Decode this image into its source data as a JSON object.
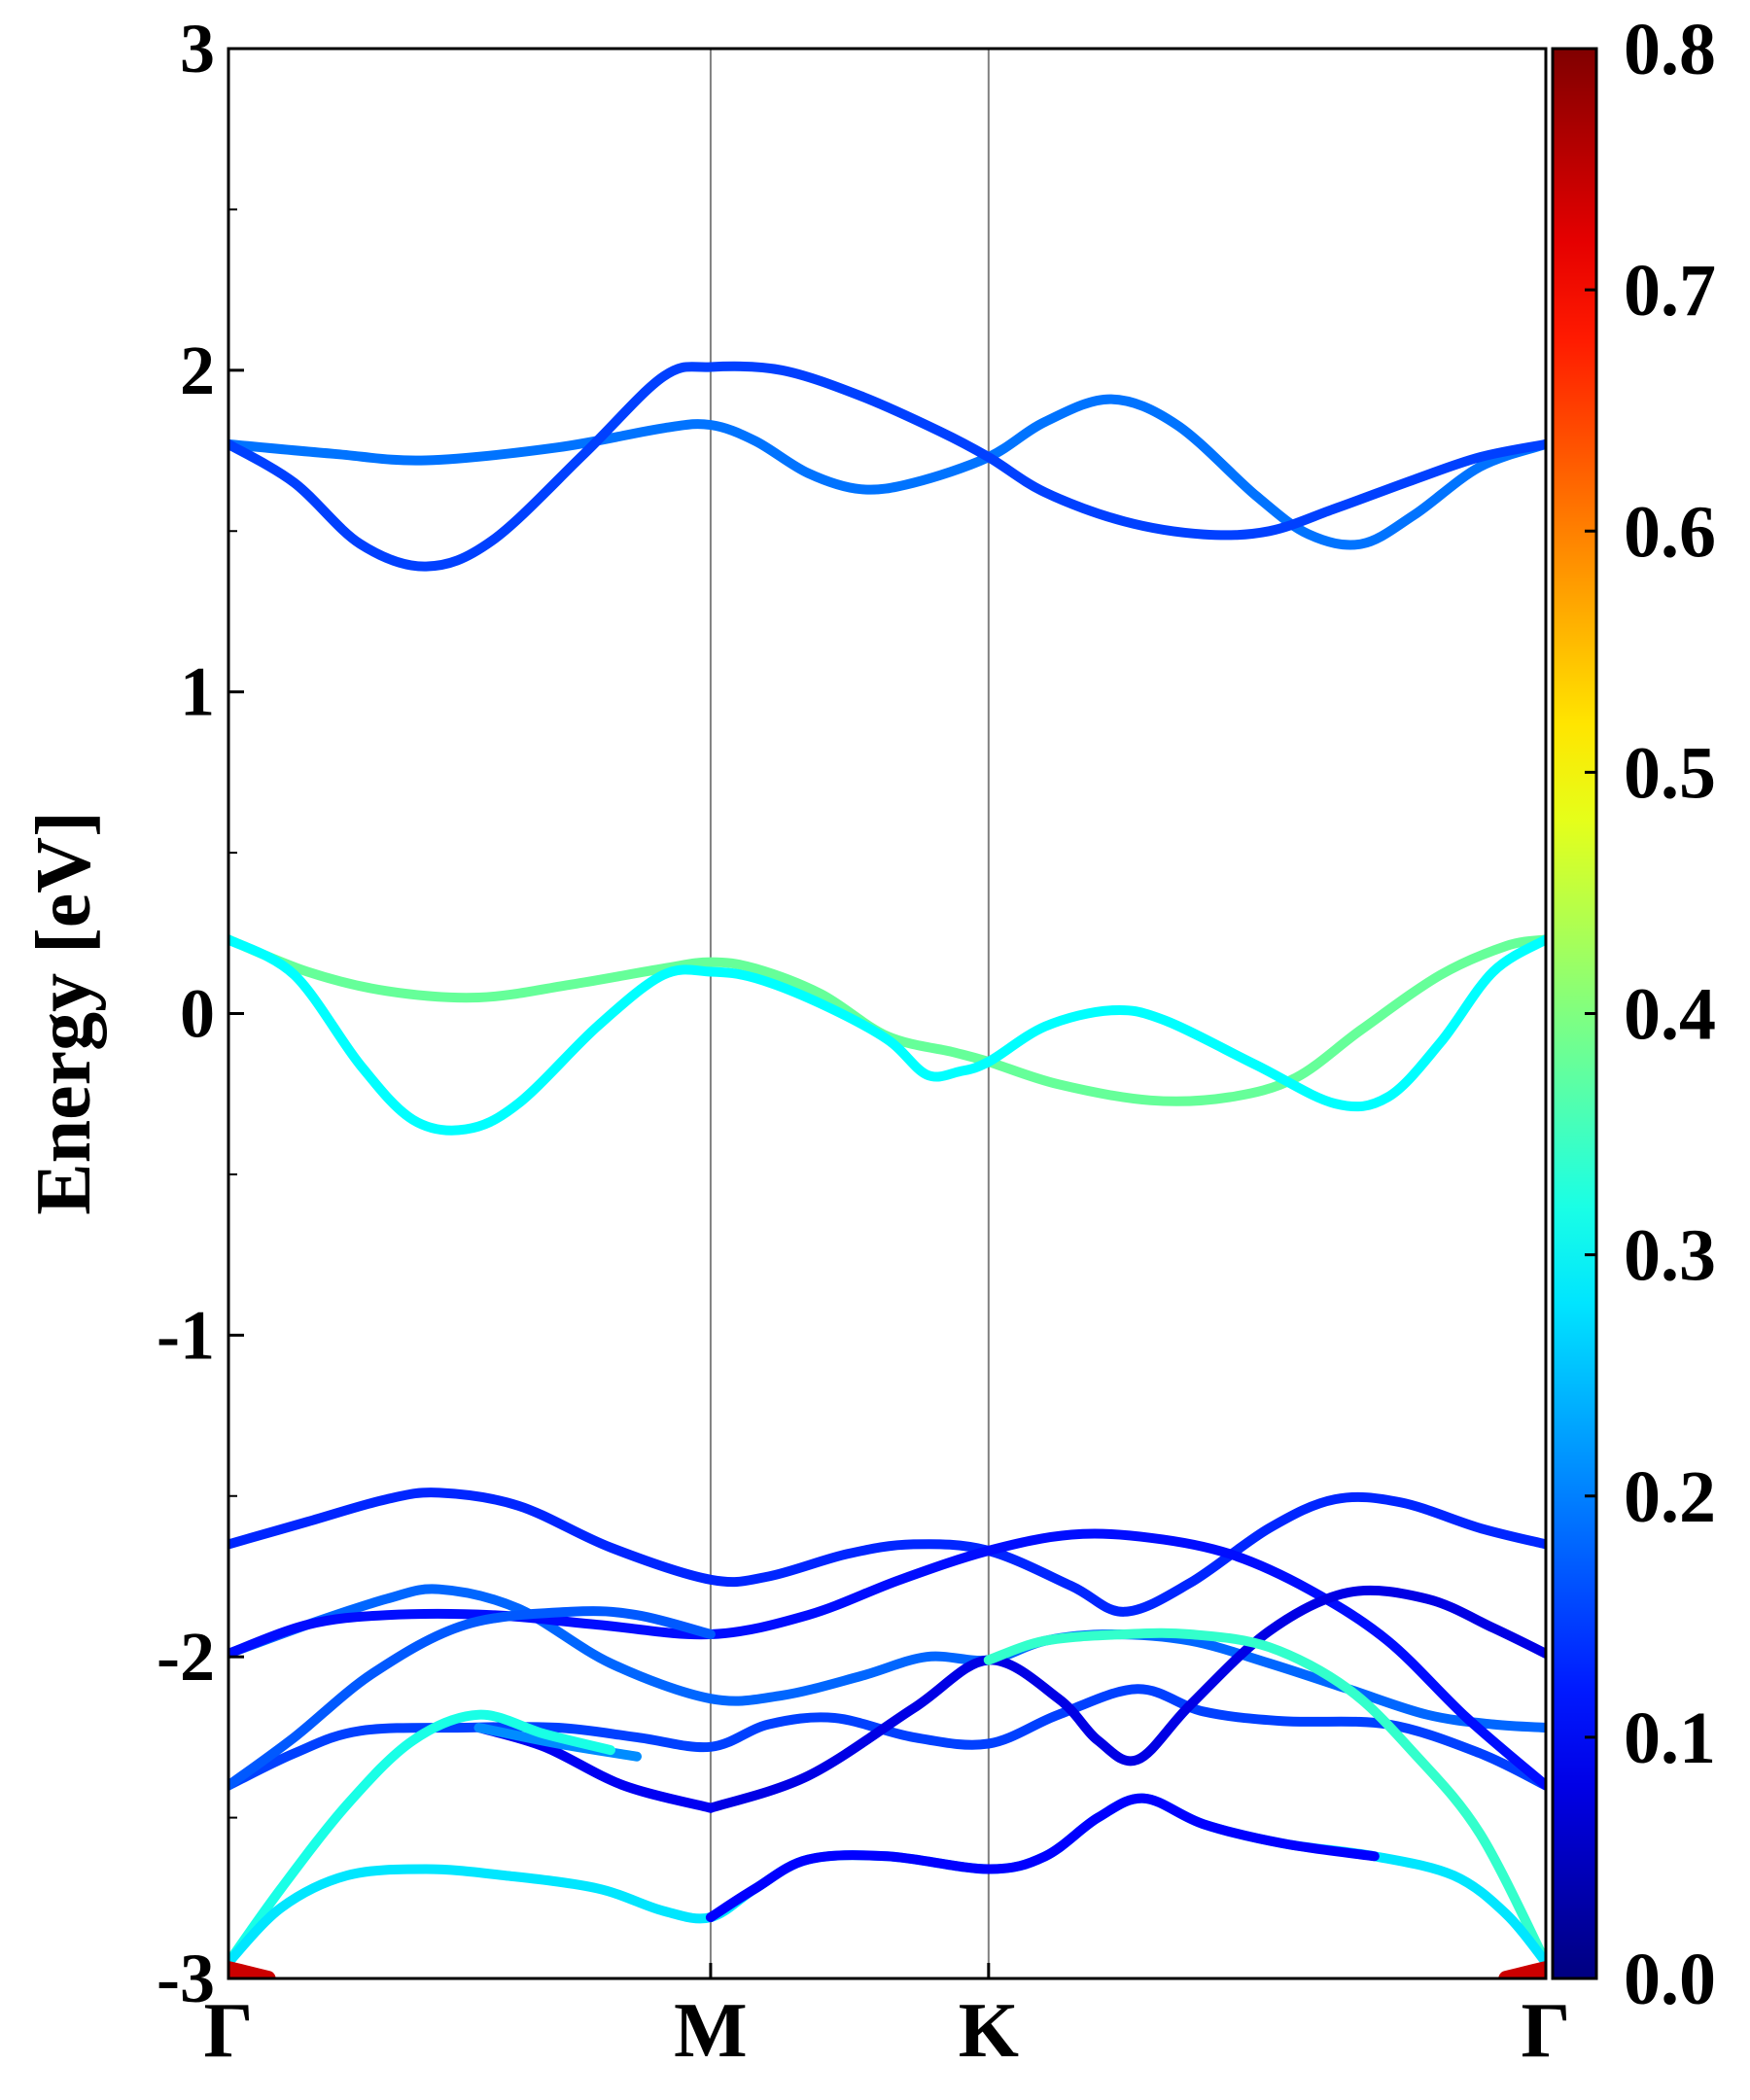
{
  "chart_data": {
    "type": "line",
    "title": "",
    "xlabel": "",
    "ylabel": "Energy [eV]",
    "ylim": [
      -3,
      3
    ],
    "xlim": [
      0,
      1
    ],
    "y_ticks": [
      {
        "value": 3,
        "label": "3"
      },
      {
        "value": 2,
        "label": "2"
      },
      {
        "value": 1,
        "label": "1"
      },
      {
        "value": 0,
        "label": "0"
      },
      {
        "value": -1,
        "label": "-1"
      },
      {
        "value": -2,
        "label": "-2"
      },
      {
        "value": -3,
        "label": "-3"
      }
    ],
    "y_minor_ticks": [
      2.5,
      1.5,
      0.5,
      -0.5,
      -1.5,
      -2.5
    ],
    "high_symmetry_points": [
      {
        "label": "Γ",
        "x": 0.0
      },
      {
        "label": "M",
        "x": 0.366
      },
      {
        "label": "K",
        "x": 0.577
      },
      {
        "label": "Γ",
        "x": 1.0
      }
    ],
    "colorbar": {
      "colormap": "jet",
      "range": [
        0.0,
        0.8
      ],
      "ticks": [
        {
          "value": 0.8,
          "label": "0.8"
        },
        {
          "value": 0.7,
          "label": "0.7"
        },
        {
          "value": 0.6,
          "label": "0.6"
        },
        {
          "value": 0.5,
          "label": "0.5"
        },
        {
          "value": 0.4,
          "label": "0.4"
        },
        {
          "value": 0.3,
          "label": "0.3"
        },
        {
          "value": 0.2,
          "label": "0.2"
        },
        {
          "value": 0.1,
          "label": "0.1"
        },
        {
          "value": 0.0,
          "label": "0.0"
        }
      ]
    },
    "series": [
      {
        "weight": 0.19,
        "points": [
          [
            0,
            1.77
          ],
          [
            0.08,
            1.74
          ],
          [
            0.15,
            1.72
          ],
          [
            0.25,
            1.76
          ],
          [
            0.33,
            1.82
          ],
          [
            0.366,
            1.83
          ],
          [
            0.4,
            1.78
          ],
          [
            0.44,
            1.68
          ],
          [
            0.48,
            1.63
          ],
          [
            0.52,
            1.65
          ],
          [
            0.577,
            1.73
          ],
          [
            0.62,
            1.84
          ],
          [
            0.67,
            1.91
          ],
          [
            0.72,
            1.83
          ],
          [
            0.78,
            1.61
          ],
          [
            0.82,
            1.49
          ],
          [
            0.86,
            1.46
          ],
          [
            0.9,
            1.55
          ],
          [
            0.95,
            1.7
          ],
          [
            1.0,
            1.77
          ]
        ]
      },
      {
        "weight": 0.15,
        "points": [
          [
            0,
            1.77
          ],
          [
            0.05,
            1.65
          ],
          [
            0.1,
            1.46
          ],
          [
            0.15,
            1.39
          ],
          [
            0.2,
            1.47
          ],
          [
            0.27,
            1.74
          ],
          [
            0.33,
            1.98
          ],
          [
            0.366,
            2.01
          ],
          [
            0.42,
            2.0
          ],
          [
            0.48,
            1.92
          ],
          [
            0.54,
            1.81
          ],
          [
            0.577,
            1.73
          ],
          [
            0.62,
            1.62
          ],
          [
            0.68,
            1.53
          ],
          [
            0.74,
            1.49
          ],
          [
            0.79,
            1.5
          ],
          [
            0.84,
            1.57
          ],
          [
            0.9,
            1.66
          ],
          [
            0.95,
            1.73
          ],
          [
            1.0,
            1.77
          ]
        ]
      },
      {
        "weight": 0.38,
        "points": [
          [
            0,
            0.23
          ],
          [
            0.06,
            0.13
          ],
          [
            0.12,
            0.07
          ],
          [
            0.19,
            0.05
          ],
          [
            0.26,
            0.09
          ],
          [
            0.33,
            0.14
          ],
          [
            0.366,
            0.16
          ],
          [
            0.4,
            0.14
          ],
          [
            0.45,
            0.06
          ],
          [
            0.5,
            -0.07
          ],
          [
            0.55,
            -0.12
          ],
          [
            0.577,
            -0.15
          ],
          [
            0.63,
            -0.22
          ],
          [
            0.7,
            -0.27
          ],
          [
            0.76,
            -0.26
          ],
          [
            0.81,
            -0.2
          ],
          [
            0.86,
            -0.05
          ],
          [
            0.92,
            0.12
          ],
          [
            0.97,
            0.21
          ],
          [
            1.0,
            0.23
          ]
        ]
      },
      {
        "weight": 0.3,
        "points": [
          [
            0,
            0.23
          ],
          [
            0.05,
            0.12
          ],
          [
            0.1,
            -0.16
          ],
          [
            0.14,
            -0.33
          ],
          [
            0.18,
            -0.36
          ],
          [
            0.22,
            -0.28
          ],
          [
            0.28,
            -0.04
          ],
          [
            0.33,
            0.12
          ],
          [
            0.366,
            0.13
          ],
          [
            0.4,
            0.11
          ],
          [
            0.45,
            0.03
          ],
          [
            0.5,
            -0.08
          ],
          [
            0.53,
            -0.19
          ],
          [
            0.555,
            -0.18
          ],
          [
            0.577,
            -0.15
          ],
          [
            0.62,
            -0.04
          ],
          [
            0.67,
            0.01
          ],
          [
            0.71,
            -0.02
          ],
          [
            0.78,
            -0.16
          ],
          [
            0.84,
            -0.28
          ],
          [
            0.88,
            -0.26
          ],
          [
            0.92,
            -0.09
          ],
          [
            0.96,
            0.13
          ],
          [
            1.0,
            0.23
          ]
        ]
      },
      {
        "weight": 0.13,
        "points": [
          [
            0,
            -1.65
          ],
          [
            0.06,
            -1.58
          ],
          [
            0.12,
            -1.51
          ],
          [
            0.16,
            -1.49
          ],
          [
            0.22,
            -1.53
          ],
          [
            0.29,
            -1.66
          ],
          [
            0.366,
            -1.76
          ],
          [
            0.41,
            -1.75
          ],
          [
            0.47,
            -1.68
          ],
          [
            0.52,
            -1.65
          ],
          [
            0.577,
            -1.67
          ],
          [
            0.64,
            -1.78
          ],
          [
            0.68,
            -1.86
          ],
          [
            0.73,
            -1.77
          ],
          [
            0.79,
            -1.6
          ],
          [
            0.84,
            -1.51
          ],
          [
            0.89,
            -1.52
          ],
          [
            0.95,
            -1.6
          ],
          [
            1.0,
            -1.65
          ]
        ]
      },
      {
        "weight": 0.18,
        "points": [
          [
            0,
            -1.99
          ],
          [
            0.06,
            -1.9
          ],
          [
            0.12,
            -1.82
          ],
          [
            0.16,
            -1.79
          ],
          [
            0.22,
            -1.85
          ],
          [
            0.29,
            -2.02
          ],
          [
            0.366,
            -2.13
          ],
          [
            0.42,
            -2.12
          ],
          [
            0.48,
            -2.06
          ],
          [
            0.53,
            -2.0
          ],
          [
            0.577,
            -2.01
          ],
          [
            0.62,
            -1.95
          ],
          [
            0.67,
            -1.93
          ],
          [
            0.73,
            -1.95
          ],
          [
            0.79,
            -2.02
          ],
          [
            0.85,
            -2.1
          ],
          [
            0.91,
            -2.18
          ],
          [
            0.96,
            -2.21
          ],
          [
            1.0,
            -2.22
          ]
        ]
      },
      {
        "weight": 0.15,
        "points": [
          [
            0,
            -2.4
          ],
          [
            0.05,
            -2.3
          ],
          [
            0.1,
            -2.23
          ],
          [
            0.18,
            -2.22
          ],
          [
            0.25,
            -2.22
          ],
          [
            0.31,
            -2.25
          ],
          [
            0.366,
            -2.28
          ],
          [
            0.41,
            -2.21
          ],
          [
            0.46,
            -2.19
          ],
          [
            0.52,
            -2.25
          ],
          [
            0.577,
            -2.27
          ],
          [
            0.63,
            -2.18
          ],
          [
            0.69,
            -2.1
          ],
          [
            0.74,
            -2.17
          ],
          [
            0.8,
            -2.2
          ],
          [
            0.88,
            -2.21
          ],
          [
            0.95,
            -2.3
          ],
          [
            1.0,
            -2.4
          ]
        ]
      },
      {
        "weight": 0.11,
        "points": [
          [
            0,
            -1.99
          ],
          [
            0.06,
            -1.9
          ],
          [
            0.12,
            -1.87
          ],
          [
            0.2,
            -1.87
          ],
          [
            0.28,
            -1.9
          ],
          [
            0.366,
            -1.93
          ],
          [
            0.44,
            -1.87
          ],
          [
            0.51,
            -1.76
          ],
          [
            0.577,
            -1.67
          ],
          [
            0.64,
            -1.62
          ],
          [
            0.7,
            -1.63
          ],
          [
            0.76,
            -1.68
          ],
          [
            0.82,
            -1.79
          ],
          [
            0.88,
            -1.95
          ],
          [
            0.94,
            -2.19
          ],
          [
            1.0,
            -2.4
          ]
        ]
      },
      {
        "weight": 0.17,
        "points": [
          [
            0,
            -2.4
          ],
          [
            0.05,
            -2.25
          ],
          [
            0.11,
            -2.05
          ],
          [
            0.18,
            -1.9
          ],
          [
            0.26,
            -1.86
          ],
          [
            0.31,
            -1.87
          ],
          [
            0.366,
            -1.93
          ]
        ]
      },
      {
        "weight": 0.08,
        "points": [
          [
            0.366,
            -2.47
          ],
          [
            0.44,
            -2.37
          ],
          [
            0.52,
            -2.16
          ],
          [
            0.577,
            -2.01
          ],
          [
            0.63,
            -2.13
          ],
          [
            0.66,
            -2.26
          ],
          [
            0.69,
            -2.32
          ],
          [
            0.73,
            -2.15
          ],
          [
            0.79,
            -1.92
          ],
          [
            0.85,
            -1.8
          ],
          [
            0.91,
            -1.82
          ],
          [
            0.96,
            -1.91
          ],
          [
            1.0,
            -1.99
          ]
        ]
      },
      {
        "weight": 0.09,
        "points": [
          [
            0.366,
            -2.47
          ],
          [
            0.3,
            -2.4
          ],
          [
            0.24,
            -2.28
          ],
          [
            0.19,
            -2.22
          ]
        ]
      },
      {
        "weight": 0.21,
        "points": [
          [
            0.19,
            -2.22
          ],
          [
            0.25,
            -2.27
          ],
          [
            0.31,
            -2.31
          ]
        ]
      },
      {
        "weight": 0.32,
        "points": [
          [
            0,
            -2.95
          ],
          [
            0.04,
            -2.72
          ],
          [
            0.09,
            -2.46
          ],
          [
            0.14,
            -2.26
          ],
          [
            0.19,
            -2.18
          ],
          [
            0.24,
            -2.24
          ],
          [
            0.29,
            -2.29
          ]
        ]
      },
      {
        "weight": 0.34,
        "points": [
          [
            0.577,
            -2.01
          ],
          [
            0.62,
            -1.95
          ],
          [
            0.68,
            -1.93
          ],
          [
            0.73,
            -1.93
          ],
          [
            0.79,
            -1.97
          ],
          [
            0.85,
            -2.1
          ],
          [
            0.9,
            -2.3
          ],
          [
            0.95,
            -2.55
          ],
          [
            1.0,
            -2.95
          ]
        ]
      },
      {
        "weight": 0.28,
        "points": [
          [
            0,
            -2.95
          ],
          [
            0.04,
            -2.78
          ],
          [
            0.09,
            -2.68
          ],
          [
            0.15,
            -2.66
          ],
          [
            0.21,
            -2.68
          ],
          [
            0.28,
            -2.72
          ],
          [
            0.33,
            -2.79
          ],
          [
            0.366,
            -2.81
          ],
          [
            0.4,
            -2.72
          ],
          [
            0.44,
            -2.63
          ],
          [
            0.5,
            -2.62
          ],
          [
            0.577,
            -2.66
          ],
          [
            0.62,
            -2.62
          ],
          [
            0.66,
            -2.5
          ],
          [
            0.695,
            -2.44
          ],
          [
            0.74,
            -2.52
          ],
          [
            0.8,
            -2.58
          ],
          [
            0.87,
            -2.62
          ],
          [
            0.93,
            -2.68
          ],
          [
            0.97,
            -2.8
          ],
          [
            1.0,
            -2.95
          ]
        ]
      },
      {
        "weight": 0.1,
        "points": [
          [
            0.366,
            -2.81
          ],
          [
            0.4,
            -2.72
          ],
          [
            0.44,
            -2.63
          ],
          [
            0.5,
            -2.62
          ],
          [
            0.577,
            -2.66
          ],
          [
            0.62,
            -2.62
          ],
          [
            0.66,
            -2.5
          ],
          [
            0.695,
            -2.44
          ],
          [
            0.74,
            -2.52
          ],
          [
            0.8,
            -2.58
          ],
          [
            0.87,
            -2.62
          ]
        ]
      },
      {
        "weight": 0.74,
        "points": [
          [
            0,
            -2.97
          ],
          [
            0.015,
            -2.985
          ],
          [
            0.03,
            -3.0
          ]
        ]
      },
      {
        "weight": 0.74,
        "points": [
          [
            0.97,
            -3.0
          ],
          [
            0.985,
            -2.985
          ],
          [
            1.0,
            -2.97
          ]
        ]
      }
    ]
  }
}
